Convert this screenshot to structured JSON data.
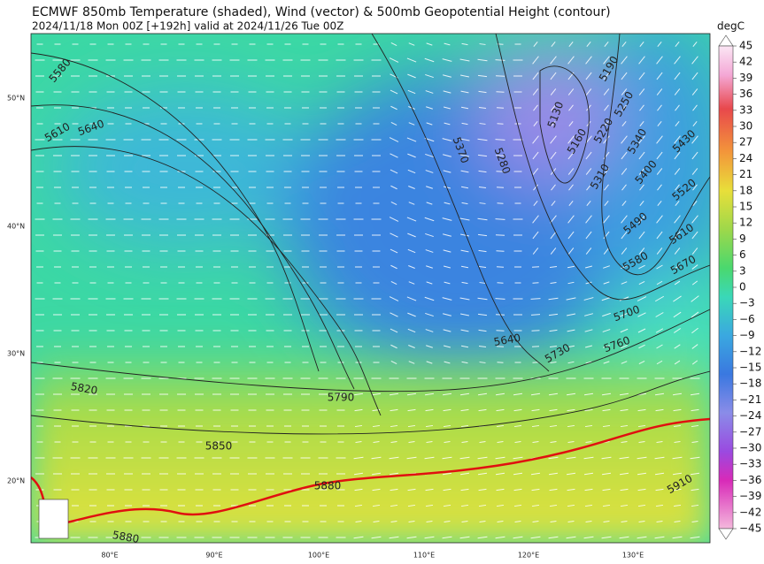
{
  "header": {
    "title": "ECMWF 850mb Temperature (shaded), Wind (vector) & 500mb Geopotential Height (contour)",
    "subtitle": "2024/11/18 Mon 00Z [+192h] valid at 2024/11/26 Tue 00Z"
  },
  "colorbar": {
    "unit": "degC",
    "labels": [
      "45",
      "42",
      "39",
      "36",
      "33",
      "30",
      "27",
      "24",
      "21",
      "18",
      "15",
      "12",
      "9",
      "6",
      "3",
      "0",
      "−3",
      "−6",
      "−9",
      "−12",
      "−15",
      "−18",
      "−21",
      "−24",
      "−27",
      "−30",
      "−33",
      "−36",
      "−39",
      "−42",
      "−45"
    ]
  },
  "map": {
    "lat_labels": [
      "50°N",
      "40°N",
      "30°N",
      "20°N"
    ],
    "lon_labels": [
      "80°E",
      "90°E",
      "100°E",
      "110°E",
      "120°E",
      "130°E"
    ],
    "contour_labels": [
      "5580",
      "5610",
      "5640",
      "5370",
      "5280",
      "5190",
      "5130",
      "5160",
      "5250",
      "5220",
      "5340",
      "5310",
      "5400",
      "5430",
      "5520",
      "5490",
      "5610",
      "5580",
      "5670",
      "5700",
      "5760",
      "5730",
      "5640",
      "5820",
      "5790",
      "5850",
      "5880",
      "5880",
      "5910"
    ]
  }
}
